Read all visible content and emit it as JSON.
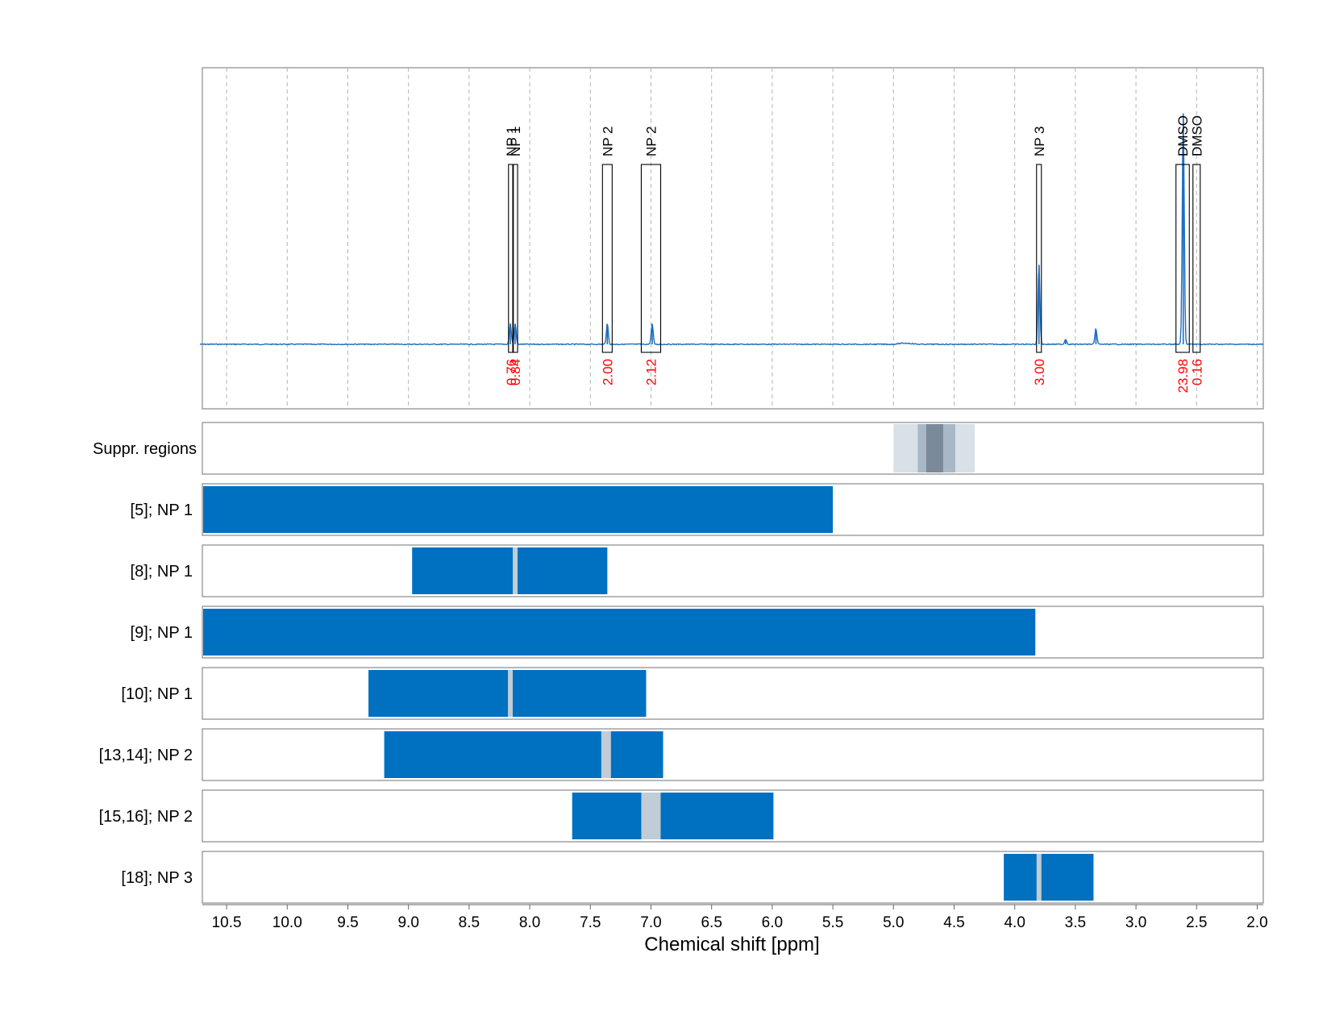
{
  "chart_data": {
    "type": "nmr_spectrum_with_region_tracks",
    "xlabel": "Chemical shift [ppm]",
    "xlim": [
      10.7,
      1.95
    ],
    "x_ticks": [
      "10.5",
      "10.0",
      "9.5",
      "9.0",
      "8.5",
      "8.0",
      "7.5",
      "7.0",
      "6.5",
      "6.0",
      "5.5",
      "5.0",
      "4.5",
      "4.0",
      "3.5",
      "3.0",
      "2.5",
      "2.0"
    ],
    "x_tick_values": [
      10.5,
      10.0,
      9.5,
      9.0,
      8.5,
      8.0,
      7.5,
      7.0,
      6.5,
      6.0,
      5.5,
      5.0,
      4.5,
      4.0,
      3.5,
      3.0,
      2.5,
      2.0
    ],
    "grid": true,
    "colors": {
      "spectrum": "#1f6fbf",
      "region_bar": "#0070c0",
      "center_marker": "#c0ccd6",
      "integral": "#ff0000",
      "box": "#000000",
      "suppr_light": "#d8e0e8",
      "suppr_mid": "#a8b8c6",
      "suppr_dark": "#7a8a9a"
    },
    "spectrum_peaks": [
      {
        "ppm": 8.16,
        "height": 0.08
      },
      {
        "ppm": 8.12,
        "height": 0.08
      },
      {
        "ppm": 7.36,
        "height": 0.08
      },
      {
        "ppm": 6.99,
        "height": 0.08
      },
      {
        "ppm": 3.8,
        "height": 0.31
      },
      {
        "ppm": 3.58,
        "height": 0.02
      },
      {
        "ppm": 3.33,
        "height": 0.06
      },
      {
        "ppm": 2.61,
        "height": 0.9
      }
    ],
    "baseline_hump": {
      "from": 5.0,
      "to": 4.8,
      "height": 0.004
    },
    "annotations": [
      {
        "label": "NP 1",
        "ppm_left": 8.175,
        "ppm_right": 8.135,
        "integral": "0.76"
      },
      {
        "label": "NP 1",
        "ppm_left": 8.14,
        "ppm_right": 8.1,
        "integral": "0.84"
      },
      {
        "label": "NP 2",
        "ppm_left": 7.4,
        "ppm_right": 7.32,
        "integral": "2.00"
      },
      {
        "label": "NP 2",
        "ppm_left": 7.08,
        "ppm_right": 6.92,
        "integral": "2.12"
      },
      {
        "label": "NP 3",
        "ppm_left": 3.82,
        "ppm_right": 3.78,
        "integral": "3.00"
      },
      {
        "label": "DMSO",
        "ppm_left": 2.67,
        "ppm_right": 2.56,
        "integral": "23.98"
      },
      {
        "label": "DMSO",
        "ppm_left": 2.53,
        "ppm_right": 2.47,
        "integral": "0.16"
      }
    ],
    "suppression_track": {
      "label": "Suppr. regions",
      "bands": [
        {
          "from": 5.0,
          "to": 4.33,
          "shade": "light"
        },
        {
          "from": 4.8,
          "to": 4.49,
          "shade": "mid"
        },
        {
          "from": 4.73,
          "to": 4.59,
          "shade": "dark"
        }
      ]
    },
    "region_tracks": [
      {
        "label": "[5]; NP 1",
        "from": 10.7,
        "to": 5.5,
        "center": null
      },
      {
        "label": "[8]; NP 1",
        "from": 8.97,
        "to": 7.36,
        "center": 8.12
      },
      {
        "label": "[9]; NP 1",
        "from": 10.7,
        "to": 3.83,
        "center": null
      },
      {
        "label": "[10]; NP 1",
        "from": 9.33,
        "to": 7.04,
        "center": 8.16
      },
      {
        "label": "[13,14]; NP 2",
        "from": 9.2,
        "to": 6.9,
        "center": 7.37
      },
      {
        "label": "[15,16]; NP 2",
        "from": 7.65,
        "to": 5.99,
        "center": 7.0
      },
      {
        "label": "[18]; NP 3",
        "from": 4.09,
        "to": 3.35,
        "center": 3.8
      }
    ]
  }
}
